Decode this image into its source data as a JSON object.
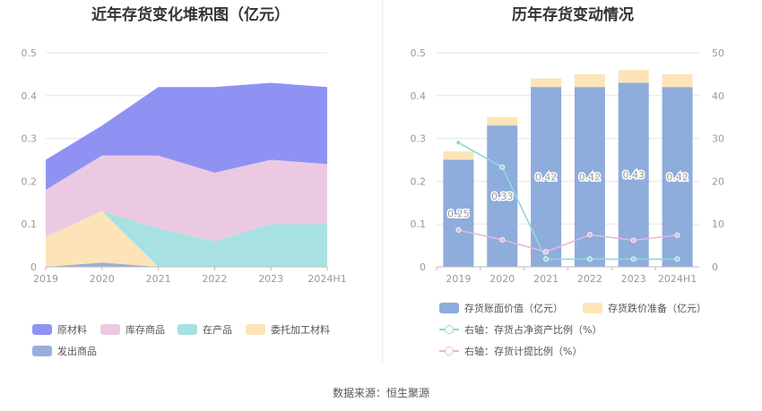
{
  "left_chart": {
    "title": "近年存货变化堆积图（亿元）"
  },
  "right_chart": {
    "title": "历年存货变动情况"
  },
  "source": "数据来源：恒生聚源",
  "colors": {
    "raw_materials": "#8f92f2",
    "inventory_goods": "#ecc9e3",
    "wip": "#a8e1e1",
    "outsourced": "#fde4b8",
    "shipped": "#99aedc",
    "book_value_bar": "#8eacdc",
    "impairment_bar": "#fde4b8",
    "net_asset_ratio_line": "#8ed9da",
    "provision_ratio_line": "#e8b7d8"
  },
  "chart_data": [
    {
      "type": "area",
      "stacked": true,
      "title": "近年存货变化堆积图（亿元）",
      "x": [
        "2019",
        "2020",
        "2021",
        "2022",
        "2023",
        "2024H1"
      ],
      "ylim": [
        0,
        0.5
      ],
      "yticks": [
        "0",
        "0.1",
        "0.2",
        "0.3",
        "0.4",
        "0.5"
      ],
      "grid": true,
      "legend_position": "bottom",
      "series": [
        {
          "name": "发出商品",
          "key": "shipped",
          "values": [
            0,
            0.01,
            0,
            0,
            0,
            0
          ]
        },
        {
          "name": "委托加工材料",
          "key": "outsourced",
          "values": [
            0.07,
            0.12,
            0,
            0,
            0,
            0
          ]
        },
        {
          "name": "在产品",
          "key": "wip",
          "values": [
            0,
            0,
            0.09,
            0.06,
            0.1,
            0.1
          ]
        },
        {
          "name": "库存商品",
          "key": "inventory_goods",
          "values": [
            0.11,
            0.13,
            0.17,
            0.16,
            0.15,
            0.14
          ]
        },
        {
          "name": "原材料",
          "key": "raw_materials",
          "values": [
            0.07,
            0.07,
            0.16,
            0.2,
            0.18,
            0.18
          ]
        }
      ],
      "legend": [
        {
          "name": "原材料",
          "key": "raw_materials"
        },
        {
          "name": "库存商品",
          "key": "inventory_goods"
        },
        {
          "name": "在产品",
          "key": "wip"
        },
        {
          "name": "委托加工材料",
          "key": "outsourced"
        },
        {
          "name": "发出商品",
          "key": "shipped"
        }
      ]
    },
    {
      "type": "bar",
      "stacked": true,
      "title": "历年存货变动情况",
      "categories": [
        "2019",
        "2020",
        "2021",
        "2022",
        "2023",
        "2024H1"
      ],
      "ylim": [
        0,
        0.5
      ],
      "yticks": [
        "0",
        "0.1",
        "0.2",
        "0.3",
        "0.4",
        "0.5"
      ],
      "y2lim": [
        0,
        50
      ],
      "y2ticks": [
        "0",
        "10",
        "20",
        "30",
        "40",
        "50"
      ],
      "grid": true,
      "legend_position": "bottom",
      "bar_series": [
        {
          "name": "存货账面价值（亿元）",
          "key": "book_value_bar",
          "values": [
            0.25,
            0.33,
            0.42,
            0.42,
            0.43,
            0.42
          ],
          "labels": [
            "0.25",
            "0.33",
            "0.42",
            "0.42",
            "0.43",
            "0.42"
          ]
        },
        {
          "name": "存货跌价准备（亿元）",
          "key": "impairment_bar",
          "values": [
            0.02,
            0.02,
            0.02,
            0.03,
            0.03,
            0.03
          ]
        }
      ],
      "line_series": [
        {
          "name": "右轴：存货占净资产比例（%）",
          "key": "net_asset_ratio_line",
          "axis": "right",
          "values": [
            29,
            23.3,
            1.8,
            1.8,
            1.8,
            1.8
          ]
        },
        {
          "name": "右轴：存货计提比例（%）",
          "key": "provision_ratio_line",
          "axis": "right",
          "values": [
            8.6,
            6.3,
            3.5,
            7.5,
            6.2,
            7.4
          ]
        }
      ]
    }
  ]
}
